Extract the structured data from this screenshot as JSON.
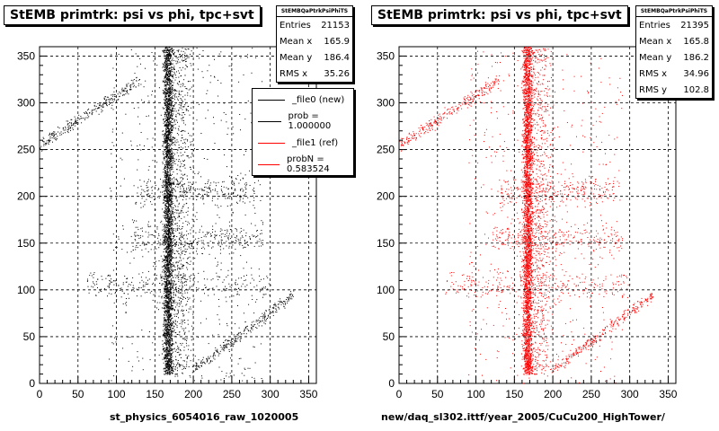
{
  "panels": [
    {
      "title": "StEMB primtrk: psi vs phi, tpc+svt",
      "stats": {
        "name": "StEMBQaPtrkPsiPhiTS",
        "rows": [
          {
            "label": "Entries",
            "value": "21153"
          },
          {
            "label": "Mean x",
            "value": "165.9"
          },
          {
            "label": "Mean y",
            "value": "186.4"
          },
          {
            "label": "RMS x",
            "value": "35.26"
          }
        ]
      },
      "legend": [
        {
          "label": "_file0 (new)",
          "color": "#000000"
        },
        {
          "label": "prob = 1.000000",
          "color": "#000000"
        },
        {
          "label": "_file1 (ref)",
          "color": "#ff0000"
        },
        {
          "label": "probN = 0.583524",
          "color": "#ff0000"
        }
      ],
      "xlabel": "st_physics_6054016_raw_1020005",
      "color": "#000000"
    },
    {
      "title": "StEMB primtrk: psi vs phi, tpc+svt",
      "stats": {
        "name": "StEMBQaPtrkPsiPhiTS",
        "rows": [
          {
            "label": "Entries",
            "value": "21395"
          },
          {
            "label": "Mean x",
            "value": "165.8"
          },
          {
            "label": "Mean y",
            "value": "186.2"
          },
          {
            "label": "RMS x",
            "value": "34.96"
          },
          {
            "label": "RMS y",
            "value": "102.8"
          }
        ]
      },
      "xlabel": "new/daq_sl302.ittf/year_2005/CuCu200_HighTower/",
      "color": "#ff0000"
    }
  ],
  "chart_data": [
    {
      "type": "scatter",
      "title": "StEMB primtrk: psi vs phi, tpc+svt",
      "xlim": [
        0,
        360
      ],
      "ylim": [
        0,
        360
      ],
      "xticks": [
        0,
        50,
        100,
        150,
        200,
        250,
        300,
        350
      ],
      "yticks": [
        0,
        50,
        100,
        150,
        200,
        250,
        300,
        350
      ],
      "grid": true,
      "legend_position": "top-right",
      "xlabel": "st_physics_6054016_raw_1020005",
      "entries": 21153,
      "mean_x": 165.9,
      "mean_y": 186.4,
      "rms_x": 35.26,
      "bands": [
        {
          "x": 167,
          "y_range": [
            10,
            360
          ],
          "label": "dense vertical band"
        },
        {
          "x_range": [
            120,
            300
          ],
          "y": 200,
          "label": "horizontal band"
        },
        {
          "x_range": [
            120,
            300
          ],
          "y": 150,
          "label": "horizontal band"
        },
        {
          "x_range": [
            50,
            300
          ],
          "y": 100,
          "label": "horizontal band"
        },
        {
          "x_range": [
            0,
            120
          ],
          "y_range": [
            250,
            320
          ],
          "label": "diagonal band"
        },
        {
          "x_range": [
            200,
            340
          ],
          "y_range": [
            0,
            100
          ],
          "label": "diagonal band"
        }
      ]
    },
    {
      "type": "scatter",
      "title": "StEMB primtrk: psi vs phi, tpc+svt",
      "xlim": [
        0,
        360
      ],
      "ylim": [
        0,
        360
      ],
      "xticks": [
        0,
        50,
        100,
        150,
        200,
        250,
        300,
        350
      ],
      "yticks": [
        0,
        50,
        100,
        150,
        200,
        250,
        300,
        350
      ],
      "grid": true,
      "xlabel": "new/daq_sl302.ittf/year_2005/CuCu200_HighTower/",
      "entries": 21395,
      "mean_x": 165.8,
      "mean_y": 186.2,
      "rms_x": 34.96,
      "rms_y": 102.8,
      "bands": [
        {
          "x": 167,
          "y_range": [
            10,
            360
          ],
          "label": "dense vertical band"
        },
        {
          "x_range": [
            120,
            300
          ],
          "y": 200,
          "label": "horizontal band"
        },
        {
          "x_range": [
            120,
            300
          ],
          "y": 150,
          "label": "horizontal band"
        },
        {
          "x_range": [
            50,
            300
          ],
          "y": 100,
          "label": "horizontal band"
        },
        {
          "x_range": [
            0,
            120
          ],
          "y_range": [
            250,
            320
          ],
          "label": "diagonal band"
        },
        {
          "x_range": [
            200,
            340
          ],
          "y_range": [
            0,
            100
          ],
          "label": "diagonal band"
        }
      ]
    }
  ]
}
